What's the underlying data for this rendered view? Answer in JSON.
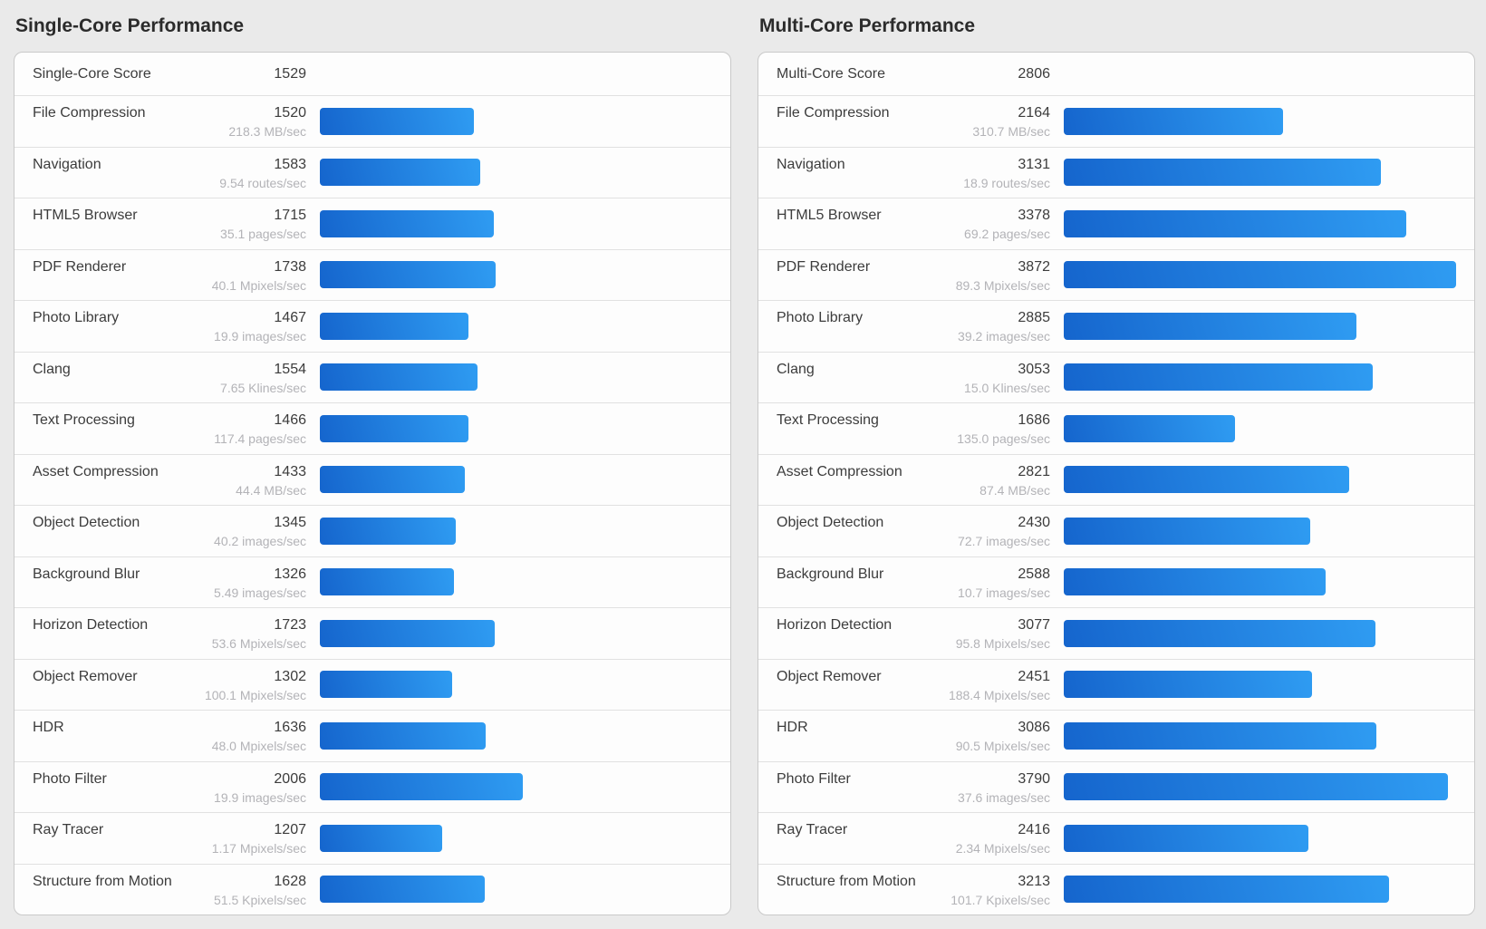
{
  "page": {
    "background": "#eaeaea"
  },
  "panels": [
    {
      "title": "Single-Core Performance",
      "score_label": "Single-Core Score",
      "score": 1529
    },
    {
      "title": "Multi-Core Performance",
      "score_label": "Multi-Core Score",
      "score": 2806
    }
  ],
  "bar_style": {
    "gradient_start": "#1565cd",
    "gradient_end": "#2f9cf2"
  },
  "chart_data": [
    {
      "type": "bar",
      "orientation": "horizontal",
      "title": "Single-Core Performance",
      "overall_score": 1529,
      "xlim": [
        0,
        3872
      ],
      "grid": false,
      "legend": false,
      "categories": [
        "File Compression",
        "Navigation",
        "HTML5 Browser",
        "PDF Renderer",
        "Photo Library",
        "Clang",
        "Text Processing",
        "Asset Compression",
        "Object Detection",
        "Background Blur",
        "Horizon Detection",
        "Object Remover",
        "HDR",
        "Photo Filter",
        "Ray Tracer",
        "Structure from Motion"
      ],
      "values": [
        1520,
        1583,
        1715,
        1738,
        1467,
        1554,
        1466,
        1433,
        1345,
        1326,
        1723,
        1302,
        1636,
        2006,
        1207,
        1628
      ],
      "rate_labels": [
        "218.3 MB/sec",
        "9.54 routes/sec",
        "35.1 pages/sec",
        "40.1 Mpixels/sec",
        "19.9 images/sec",
        "7.65 Klines/sec",
        "117.4 pages/sec",
        "44.4 MB/sec",
        "40.2 images/sec",
        "5.49 images/sec",
        "53.6 Mpixels/sec",
        "100.1 Mpixels/sec",
        "48.0 Mpixels/sec",
        "19.9 images/sec",
        "1.17 Mpixels/sec",
        "51.5 Kpixels/sec"
      ]
    },
    {
      "type": "bar",
      "orientation": "horizontal",
      "title": "Multi-Core Performance",
      "overall_score": 2806,
      "xlim": [
        0,
        3872
      ],
      "grid": false,
      "legend": false,
      "categories": [
        "File Compression",
        "Navigation",
        "HTML5 Browser",
        "PDF Renderer",
        "Photo Library",
        "Clang",
        "Text Processing",
        "Asset Compression",
        "Object Detection",
        "Background Blur",
        "Horizon Detection",
        "Object Remover",
        "HDR",
        "Photo Filter",
        "Ray Tracer",
        "Structure from Motion"
      ],
      "values": [
        2164,
        3131,
        3378,
        3872,
        2885,
        3053,
        1686,
        2821,
        2430,
        2588,
        3077,
        2451,
        3086,
        3790,
        2416,
        3213
      ],
      "rate_labels": [
        "310.7 MB/sec",
        "18.9 routes/sec",
        "69.2 pages/sec",
        "89.3 Mpixels/sec",
        "39.2 images/sec",
        "15.0 Klines/sec",
        "135.0 pages/sec",
        "87.4 MB/sec",
        "72.7 images/sec",
        "10.7 images/sec",
        "95.8 Mpixels/sec",
        "188.4 Mpixels/sec",
        "90.5 Mpixels/sec",
        "37.6 images/sec",
        "2.34 Mpixels/sec",
        "101.7 Kpixels/sec"
      ]
    }
  ]
}
